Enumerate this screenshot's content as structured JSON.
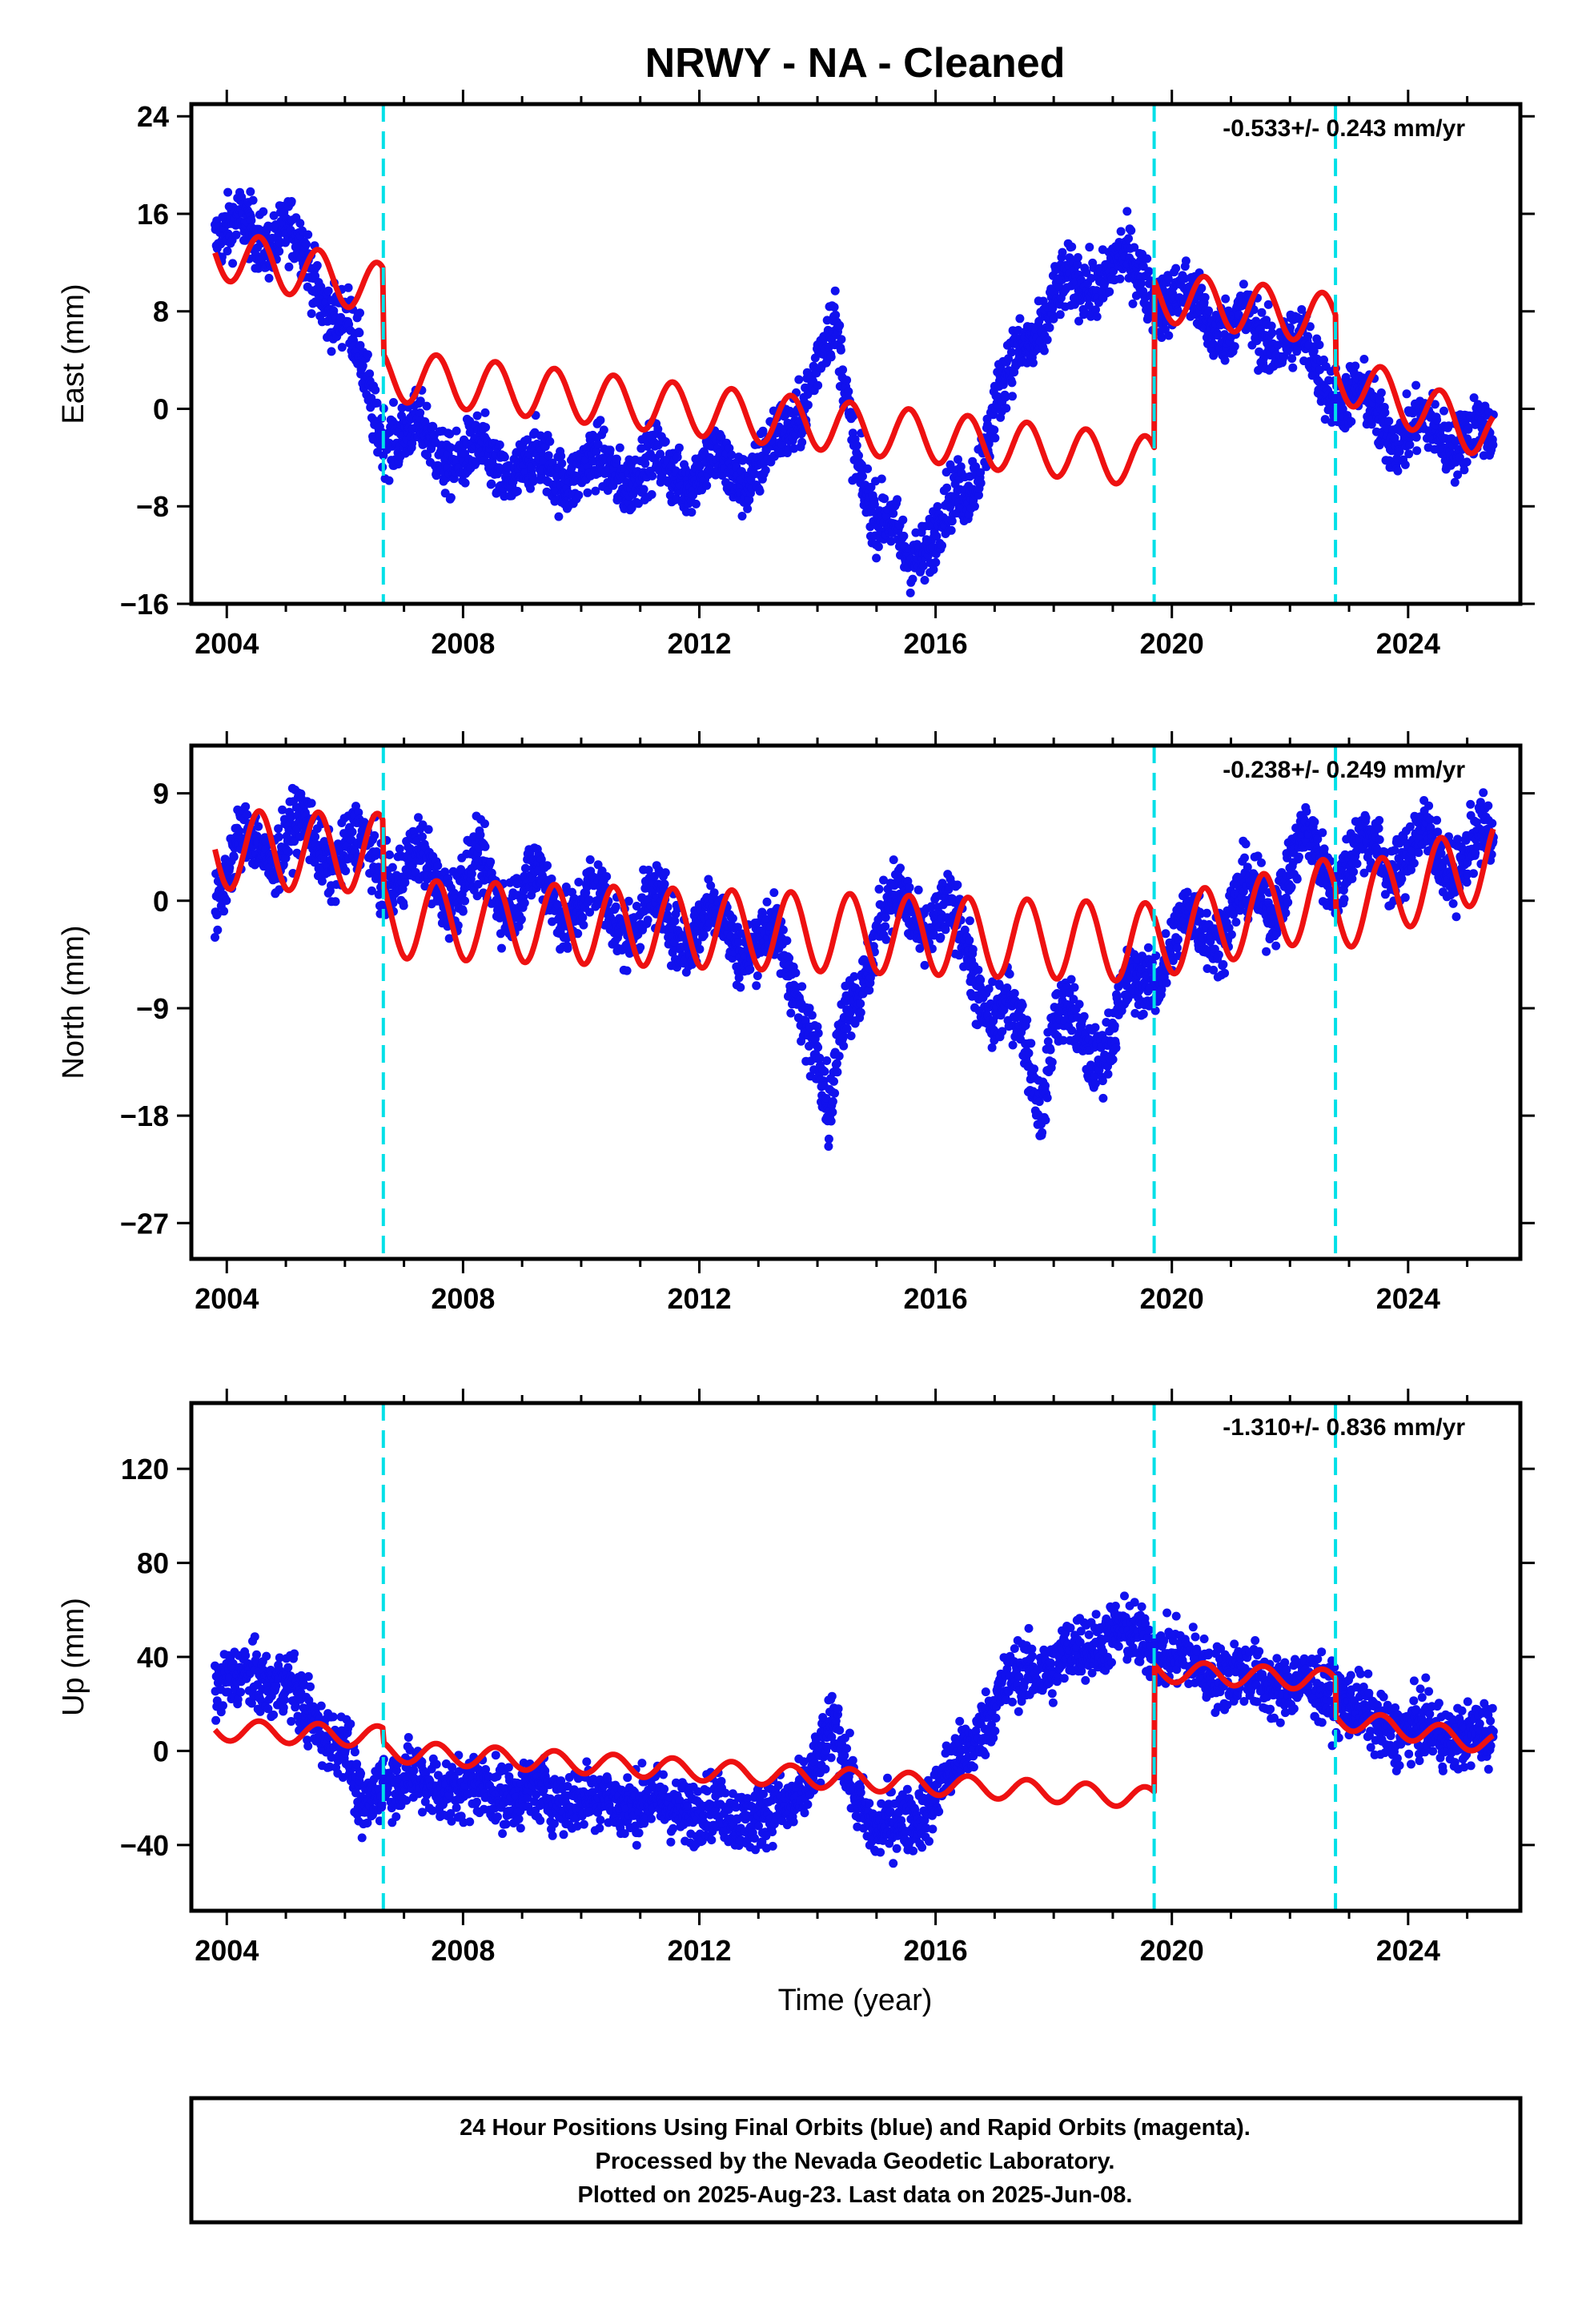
{
  "colors": {
    "observations": "#1111ee",
    "model": "#ee1111",
    "offsets": "#00e0e8",
    "frame": "#000000"
  },
  "chart_data": [
    {
      "type": "scatter",
      "title": "NRWY  - NA - Cleaned",
      "ylabel": "East (mm)",
      "xlabel": "",
      "xlim": [
        2003.4,
        2025.9
      ],
      "ylim": [
        -16,
        25
      ],
      "x_ticks": [
        2004,
        2008,
        2012,
        2016,
        2020,
        2024
      ],
      "y_ticks": [
        24,
        16,
        8,
        0,
        -8,
        -16
      ],
      "offset_lines_x": [
        2006.65,
        2019.7,
        2022.77
      ],
      "rate": "-0.533+/- 0.243 mm/yr",
      "grid": false,
      "observation_trend": [
        [
          2003.8,
          15
        ],
        [
          2004.5,
          14
        ],
        [
          2005.0,
          15
        ],
        [
          2005.5,
          10
        ],
        [
          2006.0,
          8
        ],
        [
          2006.5,
          -1
        ],
        [
          2007.0,
          -2
        ],
        [
          2008.0,
          -4
        ],
        [
          2009.0,
          -5
        ],
        [
          2010.0,
          -5
        ],
        [
          2011.0,
          -5
        ],
        [
          2012.0,
          -5
        ],
        [
          2013.0,
          -5
        ],
        [
          2013.5,
          -2
        ],
        [
          2014.0,
          4
        ],
        [
          2014.3,
          6
        ],
        [
          2014.6,
          -2
        ],
        [
          2015.0,
          -9
        ],
        [
          2015.5,
          -12
        ],
        [
          2016.0,
          -10
        ],
        [
          2016.5,
          -7
        ],
        [
          2017.0,
          0
        ],
        [
          2017.5,
          5
        ],
        [
          2018.0,
          9
        ],
        [
          2018.5,
          10
        ],
        [
          2019.0,
          12
        ],
        [
          2019.7,
          10
        ],
        [
          2020.0,
          9
        ],
        [
          2021.0,
          7
        ],
        [
          2021.5,
          6
        ],
        [
          2022.0,
          6
        ],
        [
          2022.5,
          3
        ],
        [
          2022.77,
          2
        ],
        [
          2023.5,
          -1
        ],
        [
          2024.0,
          -2
        ],
        [
          2024.5,
          -2
        ],
        [
          2025.0,
          -2
        ],
        [
          2025.45,
          -3
        ]
      ],
      "model_trend": [
        [
          2003.8,
          12.8
        ],
        [
          2006.65,
          9.8
        ],
        [
          2006.66,
          2.8
        ],
        [
          2019.7,
          -4.4
        ],
        [
          2019.71,
          9.3
        ],
        [
          2022.77,
          7.3
        ],
        [
          2022.78,
          2.8
        ],
        [
          2025.45,
          -2.3
        ]
      ],
      "seasonal_amplitude": 2.1
    },
    {
      "type": "scatter",
      "ylabel": "North (mm)",
      "xlabel": "",
      "xlim": [
        2003.4,
        2025.9
      ],
      "ylim": [
        -30,
        13
      ],
      "x_ticks": [
        2004,
        2008,
        2012,
        2016,
        2020,
        2024
      ],
      "y_ticks": [
        9,
        0,
        -9,
        -18,
        -27
      ],
      "offset_lines_x": [
        2006.65,
        2019.7,
        2022.77
      ],
      "rate": "-0.238+/- 0.249 mm/yr",
      "grid": false,
      "observation_trend": [
        [
          2003.8,
          1
        ],
        [
          2004.5,
          5
        ],
        [
          2005.5,
          5
        ],
        [
          2006.65,
          3
        ],
        [
          2007.5,
          2
        ],
        [
          2009.0,
          1
        ],
        [
          2010.5,
          -1
        ],
        [
          2012.0,
          -2
        ],
        [
          2013.0,
          -3
        ],
        [
          2013.6,
          -6
        ],
        [
          2014.0,
          -12
        ],
        [
          2014.2,
          -20
        ],
        [
          2014.5,
          -8
        ],
        [
          2015.0,
          -3
        ],
        [
          2015.5,
          0
        ],
        [
          2016.0,
          -2
        ],
        [
          2016.5,
          -3
        ],
        [
          2017.0,
          -10
        ],
        [
          2017.5,
          -11
        ],
        [
          2017.8,
          -16
        ],
        [
          2018.0,
          -10
        ],
        [
          2018.5,
          -12
        ],
        [
          2019.0,
          -11
        ],
        [
          2019.7,
          -5
        ],
        [
          2020.5,
          -2
        ],
        [
          2021.5,
          0
        ],
        [
          2022.3,
          4
        ],
        [
          2022.77,
          3
        ],
        [
          2023.5,
          4
        ],
        [
          2024.5,
          4
        ],
        [
          2025.45,
          4
        ]
      ],
      "model_trend": [
        [
          2003.8,
          4.3
        ],
        [
          2006.65,
          4.0
        ],
        [
          2006.66,
          -1.5
        ],
        [
          2019.7,
          -3.5
        ],
        [
          2019.71,
          -3.2
        ],
        [
          2022.77,
          0.4
        ],
        [
          2022.78,
          -1.0
        ],
        [
          2025.45,
          3.5
        ]
      ],
      "seasonal_amplitude": 3.3
    },
    {
      "type": "scatter",
      "ylabel": "Up (mm)",
      "xlabel": "Time (year)",
      "xlim": [
        2003.4,
        2025.9
      ],
      "ylim": [
        -68,
        148
      ],
      "x_ticks": [
        2004,
        2008,
        2012,
        2016,
        2020,
        2024
      ],
      "y_ticks": [
        120,
        80,
        40,
        0,
        -40
      ],
      "offset_lines_x": [
        2006.65,
        2019.7,
        2022.77
      ],
      "rate": "-1.310+/- 0.836 mm/yr",
      "grid": false,
      "observation_trend": [
        [
          2003.8,
          30
        ],
        [
          2004.5,
          30
        ],
        [
          2005.0,
          30
        ],
        [
          2005.5,
          10
        ],
        [
          2006.0,
          5
        ],
        [
          2006.3,
          -30
        ],
        [
          2006.65,
          -10
        ],
        [
          2007.5,
          -15
        ],
        [
          2009.0,
          -18
        ],
        [
          2010.0,
          -20
        ],
        [
          2011.0,
          -22
        ],
        [
          2012.0,
          -25
        ],
        [
          2013.0,
          -28
        ],
        [
          2013.5,
          -25
        ],
        [
          2014.0,
          -5
        ],
        [
          2014.3,
          10
        ],
        [
          2014.6,
          -15
        ],
        [
          2015.0,
          -35
        ],
        [
          2015.5,
          -30
        ],
        [
          2016.0,
          -20
        ],
        [
          2016.5,
          0
        ],
        [
          2017.0,
          20
        ],
        [
          2017.5,
          35
        ],
        [
          2018.0,
          35
        ],
        [
          2018.5,
          45
        ],
        [
          2019.0,
          50
        ],
        [
          2019.7,
          45
        ],
        [
          2020.5,
          35
        ],
        [
          2021.5,
          30
        ],
        [
          2022.0,
          28
        ],
        [
          2022.77,
          25
        ],
        [
          2023.5,
          10
        ],
        [
          2024.5,
          8
        ],
        [
          2025.45,
          5
        ]
      ],
      "model_trend": [
        [
          2003.8,
          9
        ],
        [
          2006.65,
          6
        ],
        [
          2006.66,
          0
        ],
        [
          2019.7,
          -20
        ],
        [
          2019.71,
          34
        ],
        [
          2022.77,
          30
        ],
        [
          2022.78,
          14
        ],
        [
          2025.45,
          3
        ]
      ],
      "seasonal_amplitude": 4.5
    }
  ],
  "footer": {
    "line1": "24 Hour Positions Using Final Orbits (blue) and Rapid Orbits (magenta).",
    "line2": "Processed by the Nevada Geodetic Laboratory.",
    "line3": "Plotted on 2025-Aug-23. Last data on 2025-Jun-08."
  }
}
